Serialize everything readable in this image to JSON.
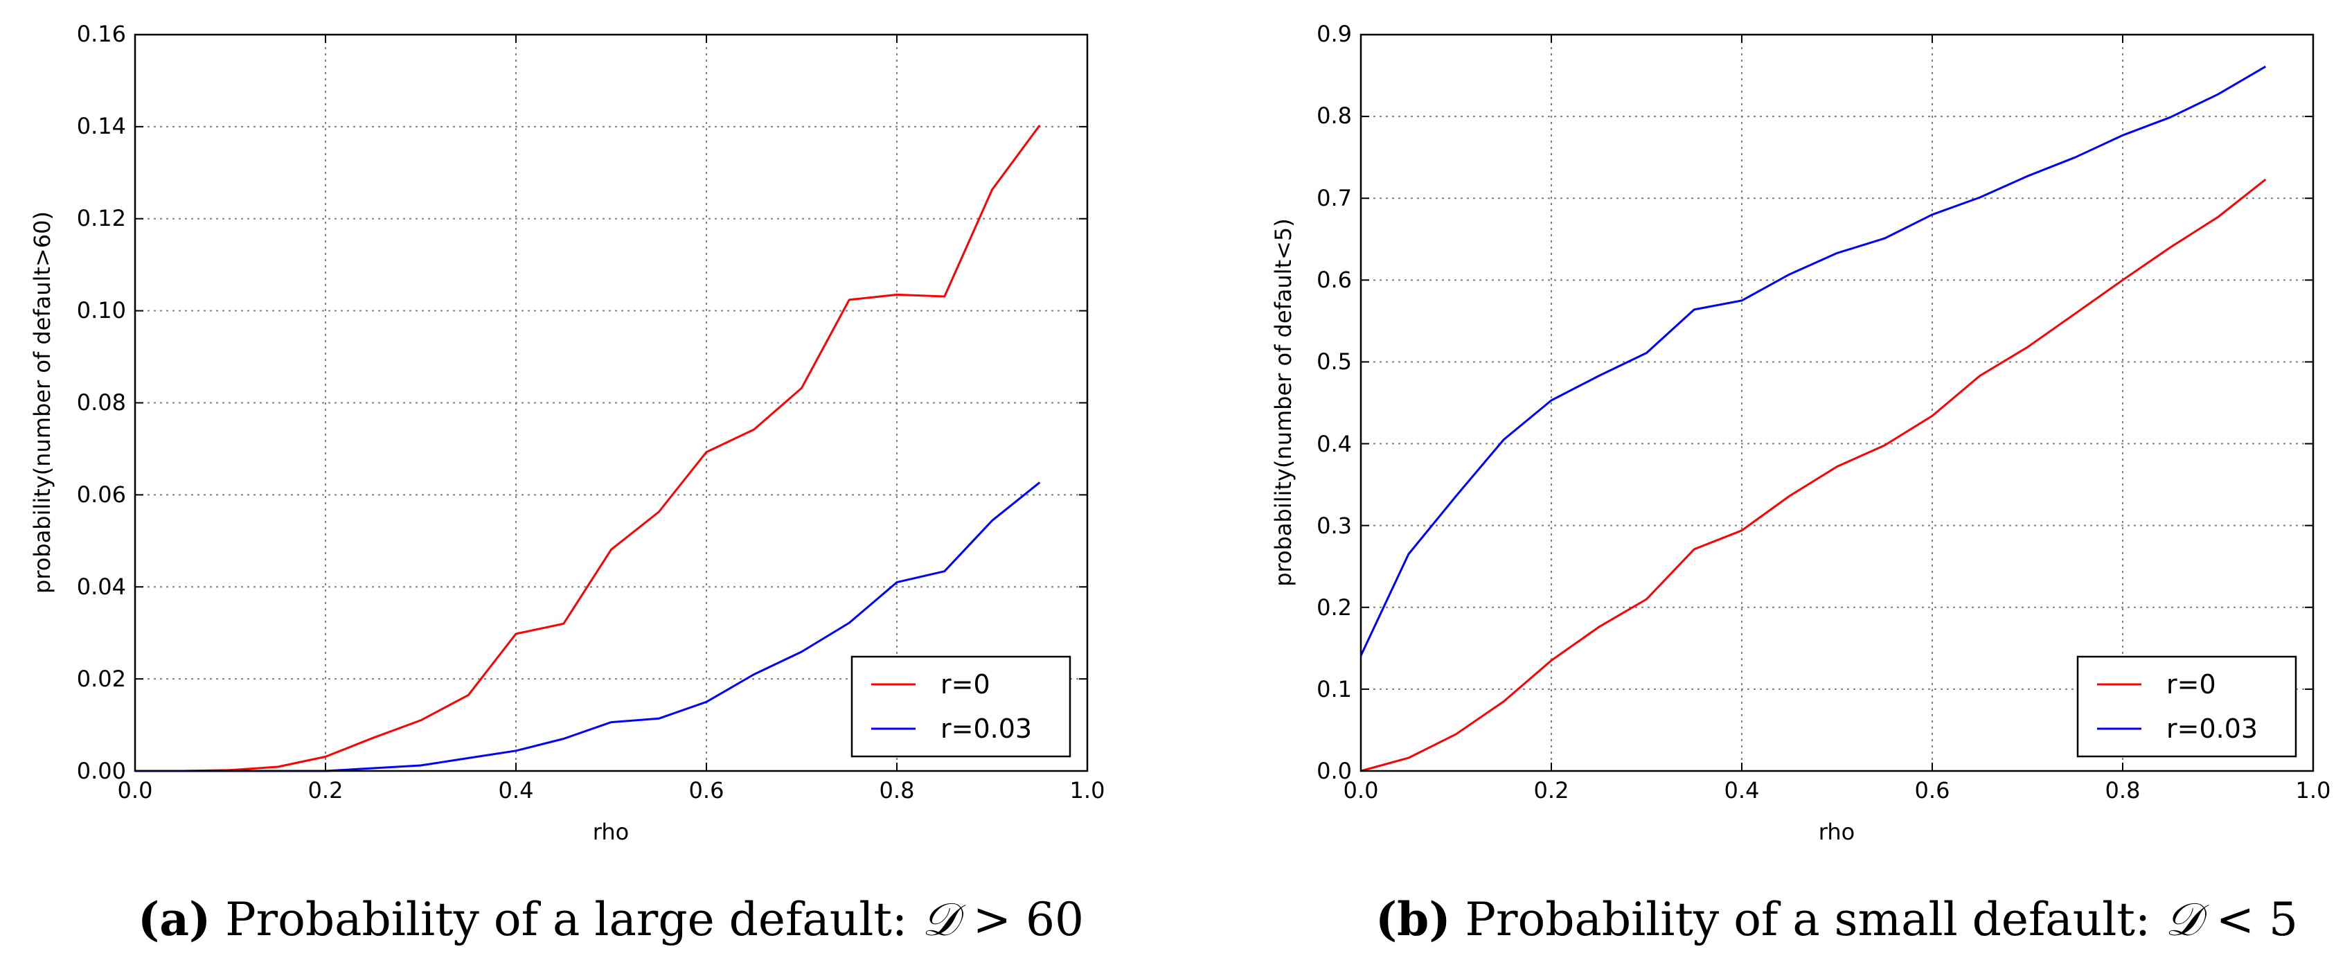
{
  "colors": {
    "r0": "#ff0000",
    "r003": "#0000ff",
    "grid": "#808080"
  },
  "chart_data": [
    {
      "type": "line",
      "xlabel": "rho",
      "ylabel": "probability(number of default>60)",
      "xlim": [
        0.0,
        1.0
      ],
      "ylim": [
        0.0,
        0.16
      ],
      "xticks": [
        0.0,
        0.2,
        0.4,
        0.6,
        0.8,
        1.0
      ],
      "xtick_labels": [
        "0.0",
        "0.2",
        "0.4",
        "0.6",
        "0.8",
        "1.0"
      ],
      "yticks": [
        0.0,
        0.02,
        0.04,
        0.06,
        0.08,
        0.1,
        0.12,
        0.14,
        0.16
      ],
      "ytick_labels": [
        "0.00",
        "0.02",
        "0.04",
        "0.06",
        "0.08",
        "0.10",
        "0.12",
        "0.14",
        "0.16"
      ],
      "grid": true,
      "legend_position": "bottom-right",
      "x": [
        0.0,
        0.05,
        0.1,
        0.15,
        0.2,
        0.25,
        0.3,
        0.35,
        0.4,
        0.45,
        0.5,
        0.55,
        0.6,
        0.65,
        0.7,
        0.75,
        0.8,
        0.85,
        0.9,
        0.95
      ],
      "series": [
        {
          "name": "r=0",
          "color": "#ff0000",
          "values": [
            0.0,
            0.0,
            0.0002,
            0.0009,
            0.0031,
            0.0072,
            0.011,
            0.0165,
            0.0298,
            0.032,
            0.0481,
            0.0563,
            0.0693,
            0.0742,
            0.0832,
            0.1024,
            0.1035,
            0.1031,
            0.1263,
            0.1403
          ]
        },
        {
          "name": "r=0.03",
          "color": "#0000ff",
          "values": [
            0.0,
            0.0,
            0.0,
            0.0,
            0.0,
            0.0006,
            0.0012,
            0.0028,
            0.0044,
            0.007,
            0.0106,
            0.0114,
            0.015,
            0.021,
            0.0259,
            0.0322,
            0.041,
            0.0434,
            0.0544,
            0.0627
          ]
        }
      ],
      "caption": {
        "label": "(a)",
        "text": " Probability of a large default: ",
        "math_symbol": "𝒟",
        "math_rest": " > 60"
      }
    },
    {
      "type": "line",
      "xlabel": "rho",
      "ylabel": "probability(number of default<5)",
      "xlim": [
        0.0,
        1.0
      ],
      "ylim": [
        0.0,
        0.9
      ],
      "xticks": [
        0.0,
        0.2,
        0.4,
        0.6,
        0.8,
        1.0
      ],
      "xtick_labels": [
        "0.0",
        "0.2",
        "0.4",
        "0.6",
        "0.8",
        "1.0"
      ],
      "yticks": [
        0.0,
        0.1,
        0.2,
        0.3,
        0.4,
        0.5,
        0.6,
        0.7,
        0.8,
        0.9
      ],
      "ytick_labels": [
        "0.0",
        "0.1",
        "0.2",
        "0.3",
        "0.4",
        "0.5",
        "0.6",
        "0.7",
        "0.8",
        "0.9"
      ],
      "grid": true,
      "legend_position": "bottom-right",
      "x": [
        0.0,
        0.05,
        0.1,
        0.15,
        0.2,
        0.25,
        0.3,
        0.35,
        0.4,
        0.45,
        0.5,
        0.55,
        0.6,
        0.65,
        0.7,
        0.75,
        0.8,
        0.85,
        0.9,
        0.95
      ],
      "series": [
        {
          "name": "r=0",
          "color": "#ff0000",
          "values": [
            0.0,
            0.016,
            0.045,
            0.085,
            0.135,
            0.176,
            0.21,
            0.271,
            0.294,
            0.336,
            0.372,
            0.398,
            0.434,
            0.483,
            0.518,
            0.559,
            0.6,
            0.64,
            0.677,
            0.723
          ]
        },
        {
          "name": "r=0.03",
          "color": "#0000ff",
          "values": [
            0.141,
            0.265,
            0.336,
            0.405,
            0.453,
            0.483,
            0.511,
            0.564,
            0.575,
            0.607,
            0.633,
            0.651,
            0.68,
            0.701,
            0.727,
            0.75,
            0.777,
            0.799,
            0.827,
            0.861
          ]
        }
      ],
      "caption": {
        "label": "(b)",
        "text": " Probability of a small default: ",
        "math_symbol": "𝒟",
        "math_rest": " < 5"
      }
    }
  ]
}
